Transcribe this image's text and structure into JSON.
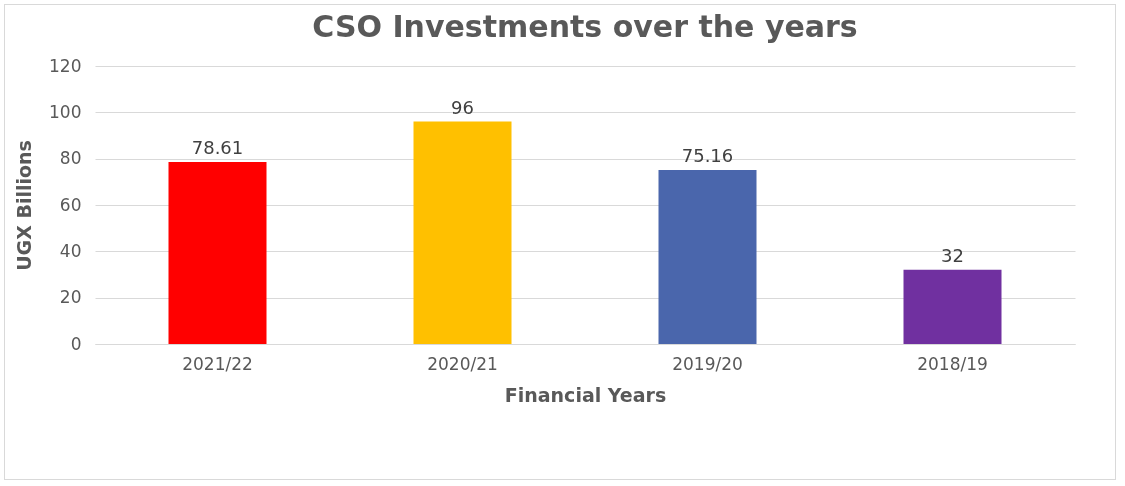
{
  "chart_data": {
    "type": "bar",
    "title": "CSO Investments over the years",
    "xlabel": "Financial Years",
    "ylabel": "UGX Billions",
    "categories": [
      "2021/22",
      "2020/21",
      "2019/20",
      "2018/19"
    ],
    "values": [
      78.61,
      96,
      75.16,
      32
    ],
    "colors": [
      "#ff0000",
      "#ffc000",
      "#4a66ac",
      "#7030a0"
    ],
    "ylim": [
      0,
      120
    ],
    "yticks": [
      0,
      20,
      40,
      60,
      80,
      100,
      120
    ],
    "grid": "y",
    "data_labels": true,
    "legend": false
  }
}
